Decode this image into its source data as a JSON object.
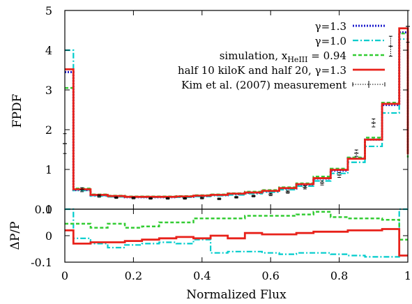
{
  "chart_data": [
    {
      "type": "line",
      "panel": "top",
      "xlabel": "",
      "ylabel": "FPDF",
      "xlim": [
        0,
        1
      ],
      "ylim": [
        0,
        5
      ],
      "yticks": [
        "0",
        "1",
        "2",
        "3",
        "4",
        "5"
      ],
      "legend_position": "top-right",
      "bin_edges": [
        0.0,
        0.025,
        0.075,
        0.125,
        0.175,
        0.225,
        0.275,
        0.325,
        0.375,
        0.425,
        0.475,
        0.525,
        0.575,
        0.625,
        0.675,
        0.725,
        0.775,
        0.825,
        0.875,
        0.925,
        0.975,
        1.0
      ],
      "series": [
        {
          "name": "γ=1.3",
          "color": "#1a1acc",
          "style": "dotted",
          "values": [
            3.45,
            0.48,
            0.35,
            0.32,
            0.3,
            0.3,
            0.3,
            0.31,
            0.33,
            0.35,
            0.38,
            0.41,
            0.45,
            0.52,
            0.62,
            0.77,
            0.97,
            1.28,
            1.75,
            2.62,
            4.45,
            1.46
          ]
        },
        {
          "name": "γ=1.0",
          "color": "#00cccc",
          "style": "dashdot",
          "values": [
            4.0,
            0.47,
            0.33,
            0.31,
            0.3,
            0.3,
            0.3,
            0.3,
            0.32,
            0.34,
            0.36,
            0.39,
            0.43,
            0.49,
            0.58,
            0.71,
            0.9,
            1.18,
            1.58,
            2.42,
            4.28,
            2.05
          ]
        },
        {
          "name": "simulation, x",
          "subscript": "HeIII",
          "suffix": " = 0.94",
          "color": "#33cc33",
          "style": "dashed",
          "values": [
            3.05,
            0.52,
            0.37,
            0.34,
            0.32,
            0.32,
            0.32,
            0.33,
            0.35,
            0.37,
            0.4,
            0.44,
            0.48,
            0.55,
            0.65,
            0.82,
            1.02,
            1.3,
            1.8,
            2.68,
            4.42,
            1.3
          ]
        },
        {
          "name": "half 10 kiloK and half 20, γ=1.3",
          "color": "#e8211a",
          "style": "solid",
          "values": [
            3.52,
            0.5,
            0.36,
            0.33,
            0.31,
            0.31,
            0.31,
            0.32,
            0.34,
            0.36,
            0.39,
            0.42,
            0.46,
            0.53,
            0.63,
            0.78,
            0.99,
            1.27,
            1.75,
            2.65,
            4.55,
            1.38
          ]
        }
      ],
      "measurement": {
        "name": "Kim et al. (2007) measurement",
        "color": "#000000",
        "x": [
          0.0,
          0.05,
          0.1,
          0.15,
          0.2,
          0.25,
          0.3,
          0.35,
          0.4,
          0.45,
          0.5,
          0.55,
          0.6,
          0.65,
          0.7,
          0.75,
          0.8,
          0.85,
          0.9,
          0.95,
          1.0
        ],
        "y": [
          1.65,
          0.49,
          0.33,
          0.29,
          0.28,
          0.27,
          0.27,
          0.27,
          0.28,
          0.26,
          0.3,
          0.33,
          0.37,
          0.43,
          0.55,
          0.66,
          0.86,
          1.41,
          2.17,
          4.1,
          4.6
        ],
        "yerr": [
          0.25,
          0.05,
          0.03,
          0.02,
          0.02,
          0.02,
          0.02,
          0.02,
          0.02,
          0.02,
          0.02,
          0.02,
          0.03,
          0.03,
          0.04,
          0.05,
          0.06,
          0.08,
          0.1,
          0.25,
          0.4
        ]
      }
    },
    {
      "type": "line",
      "panel": "bottom",
      "xlabel": "Normalized Flux",
      "ylabel": "ΔP/P",
      "xlim": [
        0,
        1
      ],
      "ylim": [
        -0.1,
        0.1
      ],
      "xticks": [
        "0",
        "0.2",
        "0.4",
        "0.6",
        "0.8",
        "1"
      ],
      "yticks": [
        "-0.1",
        "0",
        "0.1"
      ],
      "bin_edges": [
        0.0,
        0.025,
        0.075,
        0.125,
        0.175,
        0.225,
        0.275,
        0.325,
        0.375,
        0.425,
        0.475,
        0.525,
        0.575,
        0.625,
        0.675,
        0.725,
        0.775,
        0.825,
        0.875,
        0.925,
        0.975,
        1.0
      ],
      "series": [
        {
          "name": "γ=1.0",
          "color": "#00cccc",
          "style": "dashdot",
          "values": [
            0.1,
            -0.01,
            -0.03,
            -0.045,
            -0.035,
            -0.03,
            -0.025,
            -0.03,
            -0.015,
            -0.065,
            -0.06,
            -0.06,
            -0.065,
            -0.07,
            -0.065,
            -0.065,
            -0.07,
            -0.075,
            -0.08,
            -0.08,
            0.1,
            0.1
          ]
        },
        {
          "name": "simulation, x",
          "color": "#33cc33",
          "style": "dashed",
          "values": [
            0.045,
            0.045,
            0.03,
            0.045,
            0.03,
            0.035,
            0.05,
            0.05,
            0.065,
            0.065,
            0.065,
            0.075,
            0.075,
            0.075,
            0.08,
            0.09,
            0.07,
            0.065,
            0.065,
            0.06,
            -0.015,
            -0.015
          ]
        },
        {
          "name": "half 10 kiloK and half 20, γ=1.3",
          "color": "#e8211a",
          "style": "solid",
          "values": [
            0.02,
            -0.03,
            -0.025,
            -0.025,
            -0.02,
            -0.015,
            -0.01,
            -0.005,
            -0.01,
            0.0,
            -0.01,
            0.01,
            0.005,
            0.005,
            0.01,
            0.015,
            0.015,
            0.02,
            0.02,
            0.025,
            -0.075,
            -0.075
          ]
        }
      ]
    }
  ]
}
